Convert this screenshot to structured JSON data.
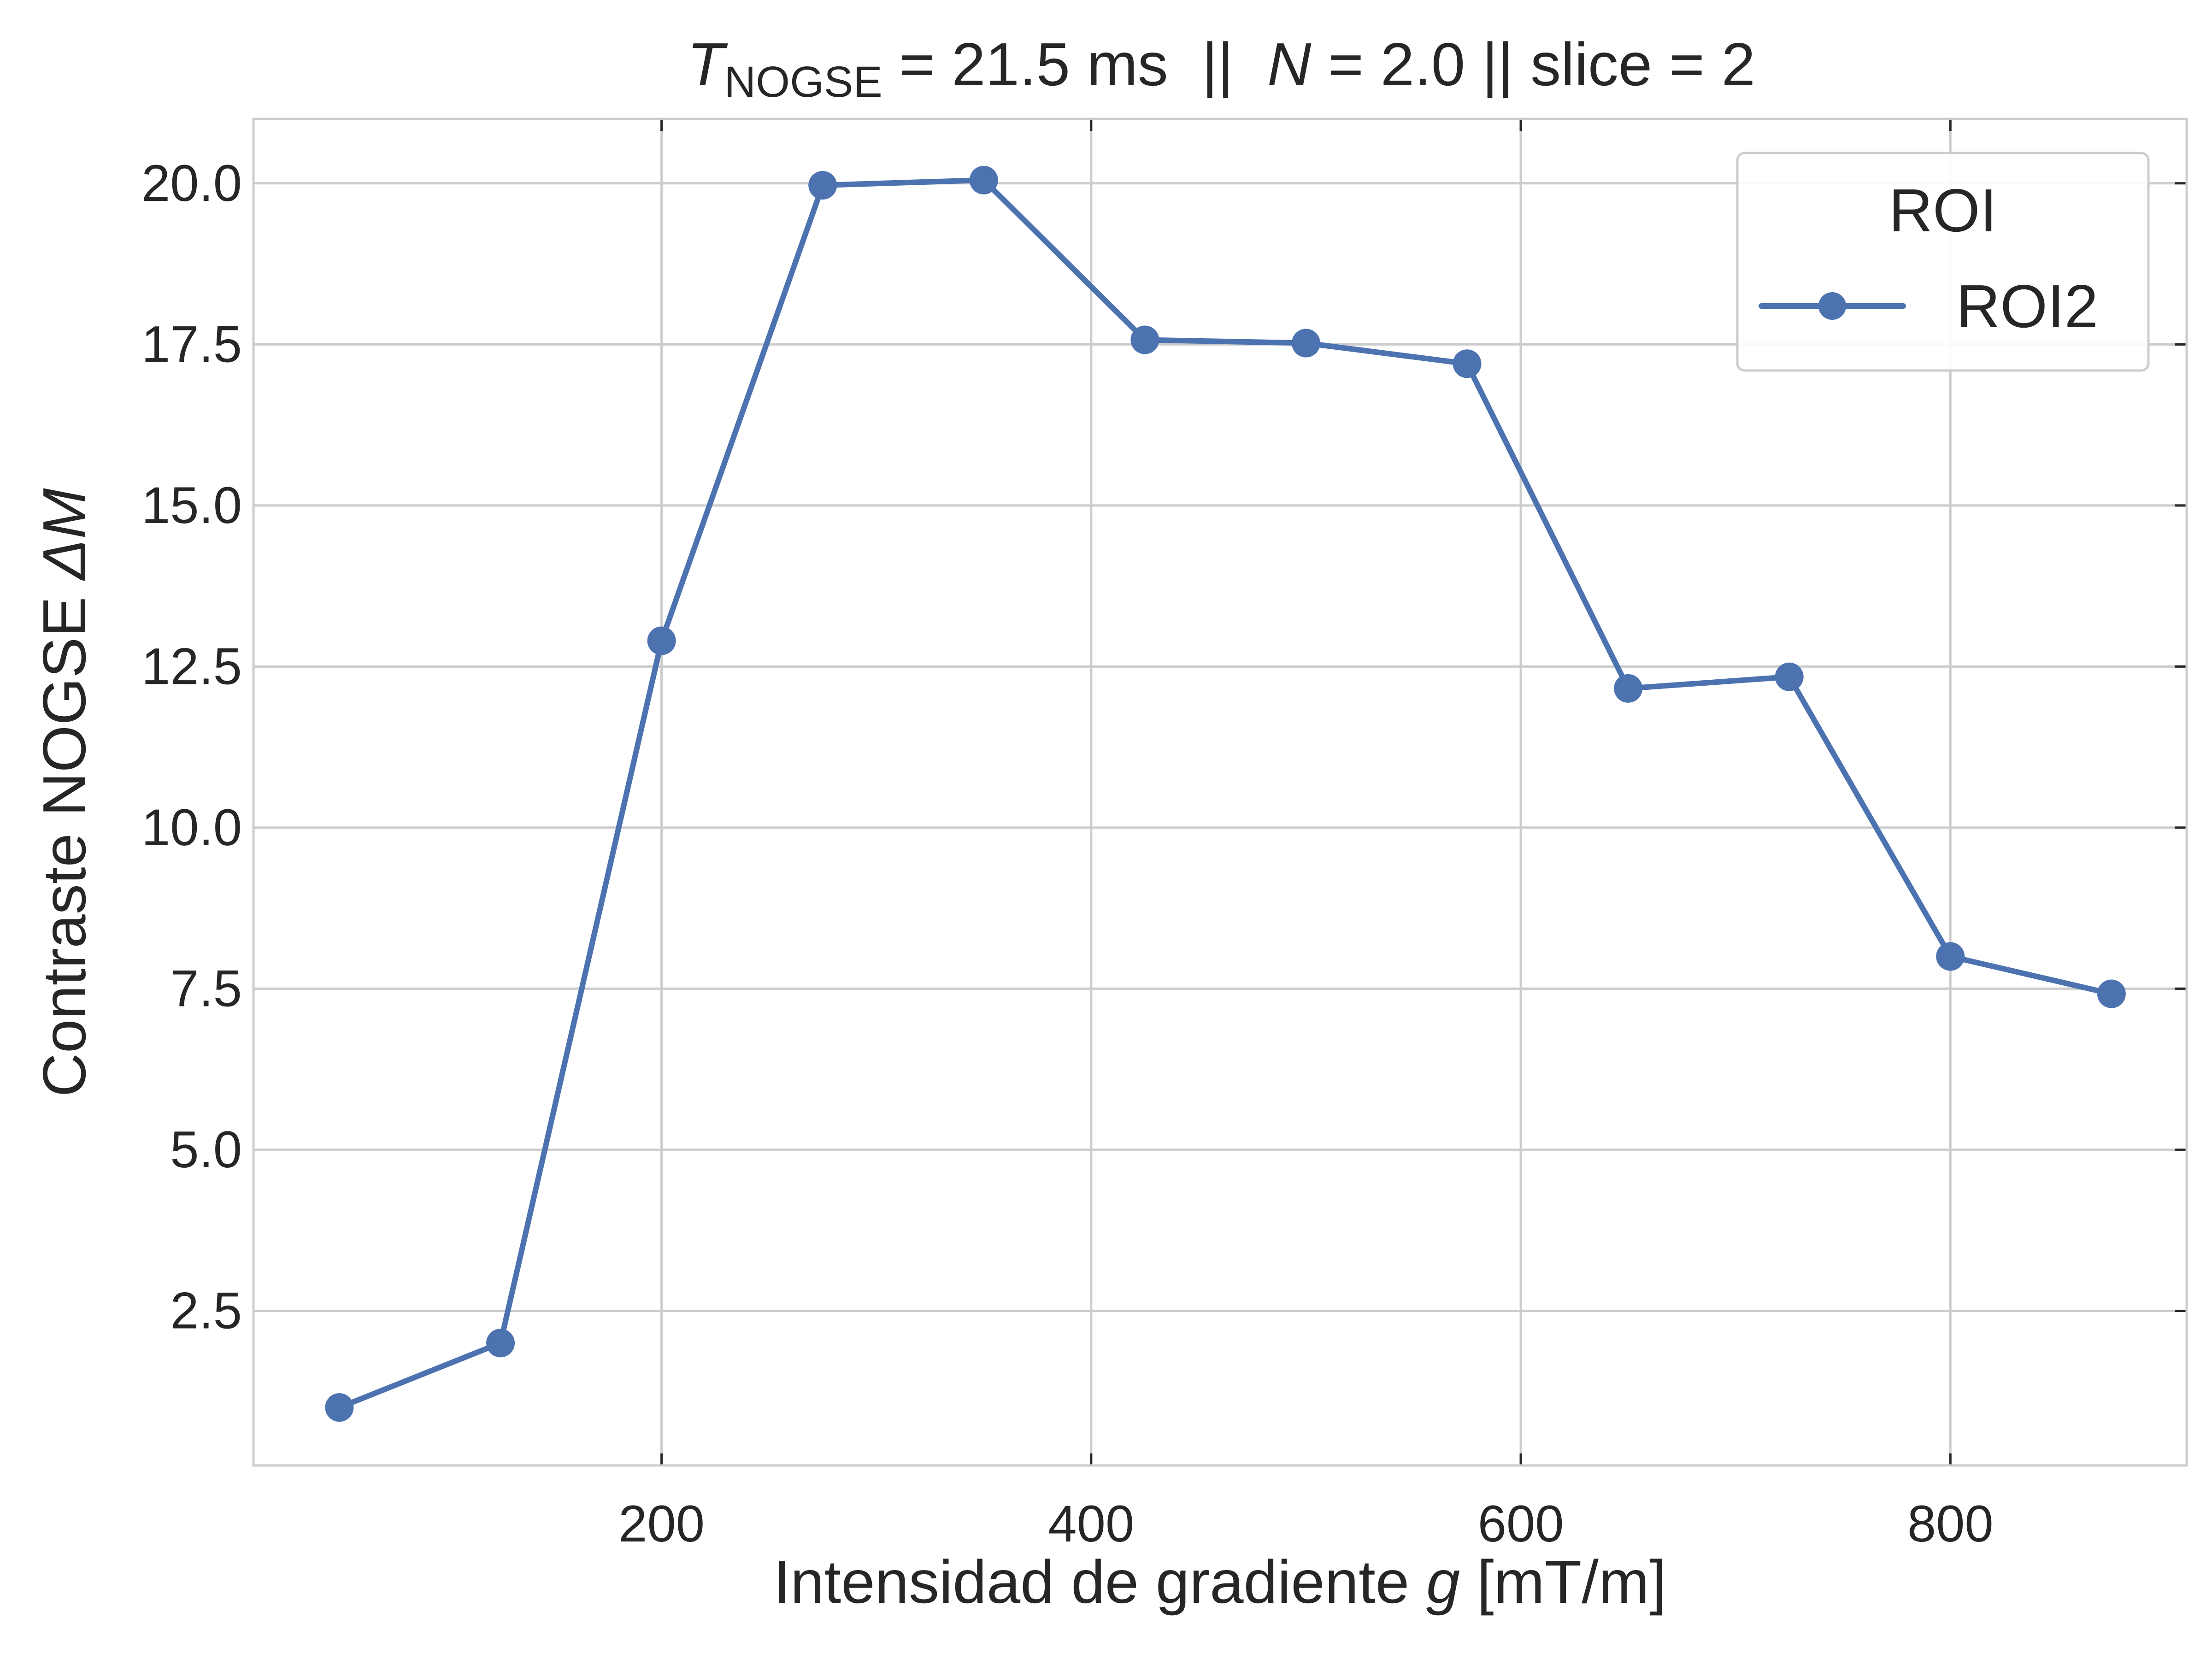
{
  "chart_data": {
    "type": "line",
    "title": {
      "t_symbol": "T",
      "t_subscript": "NOGSE",
      "text_1": " = 21.5 ms  ||  ",
      "n_symbol": "N",
      "text_2": " = 2.0 || slice = 2"
    },
    "xlabel": {
      "prefix": "Intensidad de gradiente ",
      "symbol": "g",
      "suffix": " [mT/m]"
    },
    "ylabel": {
      "prefix": "Contraste NOGSE ",
      "symbol": "ΔM"
    },
    "xlim": [
      10,
      910
    ],
    "ylim": [
      0.1,
      21.0
    ],
    "xticks": [
      200,
      400,
      600,
      800
    ],
    "xtick_labels": [
      "200",
      "400",
      "600",
      "800"
    ],
    "yticks": [
      2.5,
      5.0,
      7.5,
      10.0,
      12.5,
      15.0,
      17.5,
      20.0
    ],
    "ytick_labels": [
      "2.5",
      "5.0",
      "7.5",
      "10.0",
      "12.5",
      "15.0",
      "17.5",
      "20.0"
    ],
    "grid": true,
    "legend": {
      "title": "ROI",
      "placement": "top-right"
    },
    "series": [
      {
        "name": "ROI2",
        "color": "#4c72b0",
        "marker": "circle",
        "x": [
          50,
          125,
          200,
          275,
          350,
          425,
          500,
          575,
          650,
          725,
          800,
          875
        ],
        "y": [
          1.0,
          2.0,
          12.9,
          19.97,
          20.05,
          17.57,
          17.52,
          17.2,
          12.16,
          12.34,
          8.0,
          7.42
        ]
      }
    ]
  }
}
